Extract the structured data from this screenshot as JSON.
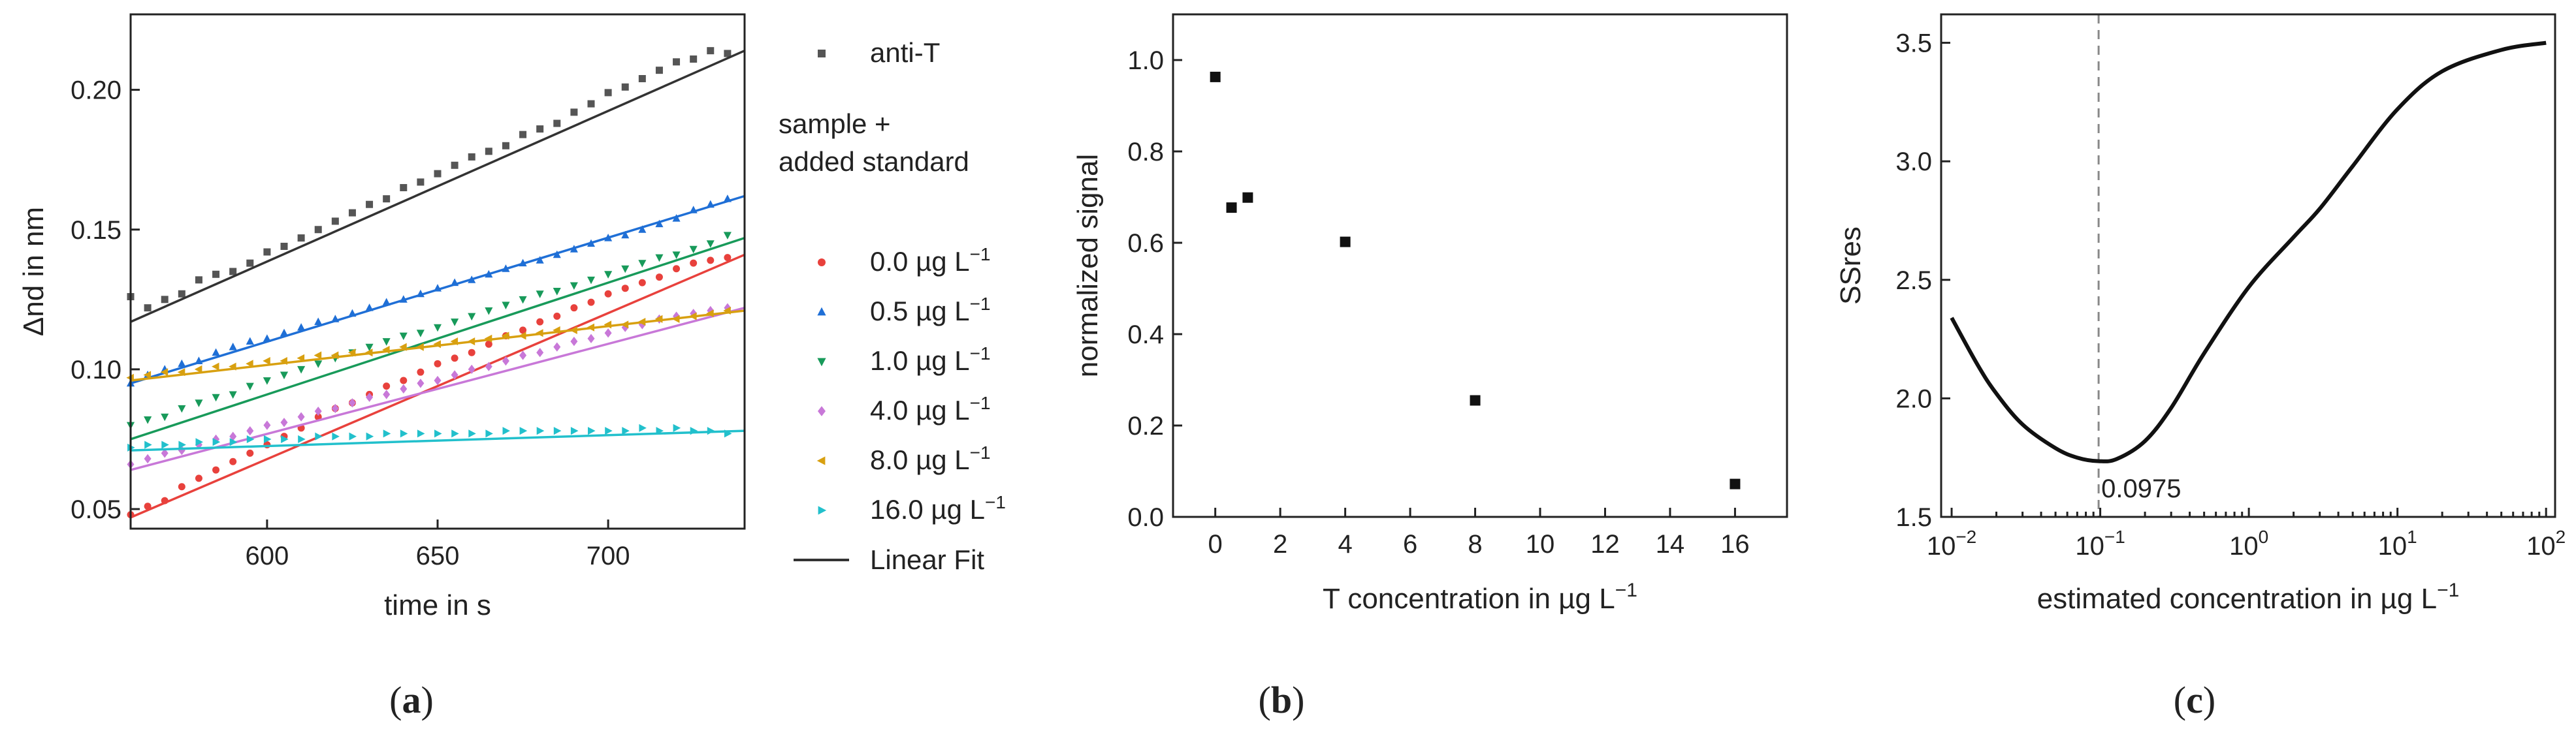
{
  "colors": {
    "anti_T": "#555555",
    "c0": "#e8413c",
    "c05": "#1f6fd6",
    "c1": "#189a5a",
    "c4": "#c878d8",
    "c8": "#d8a010",
    "c16": "#22c0cc",
    "fit": "#333333",
    "dash": "#888888"
  },
  "panel_labels": {
    "a_open": "(",
    "a": "a",
    "a_close": ")",
    "b_open": "(",
    "b": "b",
    "b_close": ")",
    "c_open": "(",
    "c": "c",
    "c_close": ")"
  },
  "chart_data": [
    {
      "id": "a",
      "type": "scatter",
      "xlabel": "time in s",
      "ylabel": "Δnd in nm",
      "xlim": [
        560,
        740
      ],
      "ylim": [
        0.043,
        0.227
      ],
      "xticks": [
        600,
        650,
        700
      ],
      "yticks": [
        0.05,
        0.1,
        0.15,
        0.2
      ],
      "ytick_labels": [
        "0.05",
        "0.10",
        "0.15",
        "0.20"
      ],
      "x_start": 560,
      "x_step": 5,
      "legend": {
        "header_line1": "sample +",
        "header_line2": "added standard",
        "unit_suffix": "−1",
        "fit_label": "Linear Fit"
      },
      "series": [
        {
          "name": "anti-T",
          "key": "anti_T",
          "marker": "square",
          "unit": "",
          "values": [
            0.126,
            0.122,
            0.125,
            0.127,
            0.132,
            0.134,
            0.135,
            0.138,
            0.142,
            0.144,
            0.147,
            0.15,
            0.153,
            0.156,
            0.159,
            0.161,
            0.165,
            0.167,
            0.17,
            0.173,
            0.176,
            0.178,
            0.18,
            0.184,
            0.186,
            0.188,
            0.192,
            0.195,
            0.199,
            0.201,
            0.204,
            0.207,
            0.21,
            0.211,
            0.214,
            0.213
          ],
          "fit": [
            0.117,
            0.214
          ]
        },
        {
          "name": "0.0",
          "key": "c0",
          "marker": "circle",
          "unit": "µg L",
          "values": [
            0.048,
            0.051,
            0.053,
            0.058,
            0.061,
            0.064,
            0.067,
            0.07,
            0.073,
            0.076,
            0.079,
            0.083,
            0.086,
            0.088,
            0.091,
            0.094,
            0.096,
            0.099,
            0.102,
            0.104,
            0.106,
            0.109,
            0.112,
            0.114,
            0.117,
            0.119,
            0.122,
            0.124,
            0.127,
            0.129,
            0.131,
            0.133,
            0.136,
            0.138,
            0.139,
            0.14
          ],
          "fit": [
            0.047,
            0.141
          ]
        },
        {
          "name": "0.5",
          "key": "c05",
          "marker": "triangle-up",
          "unit": "µg L",
          "values": [
            0.095,
            0.098,
            0.1,
            0.102,
            0.103,
            0.106,
            0.108,
            0.11,
            0.111,
            0.113,
            0.115,
            0.117,
            0.118,
            0.12,
            0.122,
            0.124,
            0.125,
            0.127,
            0.129,
            0.131,
            0.132,
            0.134,
            0.136,
            0.138,
            0.139,
            0.141,
            0.143,
            0.145,
            0.147,
            0.148,
            0.15,
            0.152,
            0.154,
            0.157,
            0.159,
            0.161
          ],
          "fit": [
            0.095,
            0.162
          ]
        },
        {
          "name": "1.0",
          "key": "c1",
          "marker": "triangle-down",
          "unit": "µg L",
          "values": [
            0.08,
            0.082,
            0.083,
            0.086,
            0.088,
            0.09,
            0.091,
            0.094,
            0.096,
            0.098,
            0.1,
            0.102,
            0.104,
            0.106,
            0.108,
            0.11,
            0.112,
            0.113,
            0.115,
            0.117,
            0.119,
            0.121,
            0.123,
            0.125,
            0.127,
            0.128,
            0.13,
            0.132,
            0.134,
            0.136,
            0.138,
            0.14,
            0.141,
            0.143,
            0.145,
            0.148
          ],
          "fit": [
            0.075,
            0.147
          ]
        },
        {
          "name": "4.0",
          "key": "c4",
          "marker": "diamond",
          "unit": "µg L",
          "values": [
            0.066,
            0.068,
            0.07,
            0.071,
            0.073,
            0.075,
            0.076,
            0.078,
            0.08,
            0.081,
            0.083,
            0.085,
            0.086,
            0.088,
            0.09,
            0.091,
            0.093,
            0.095,
            0.096,
            0.098,
            0.1,
            0.101,
            0.103,
            0.105,
            0.106,
            0.108,
            0.11,
            0.111,
            0.113,
            0.115,
            0.116,
            0.118,
            0.119,
            0.12,
            0.121,
            0.122
          ],
          "fit": [
            0.064,
            0.122
          ]
        },
        {
          "name": "8.0",
          "key": "c8",
          "marker": "triangle-left",
          "unit": "µg L",
          "values": [
            0.097,
            0.098,
            0.099,
            0.099,
            0.1,
            0.101,
            0.101,
            0.102,
            0.103,
            0.103,
            0.104,
            0.105,
            0.105,
            0.106,
            0.106,
            0.107,
            0.108,
            0.108,
            0.109,
            0.11,
            0.11,
            0.111,
            0.112,
            0.112,
            0.113,
            0.114,
            0.114,
            0.115,
            0.116,
            0.116,
            0.117,
            0.118,
            0.118,
            0.119,
            0.12,
            0.121
          ],
          "fit": [
            0.096,
            0.121
          ]
        },
        {
          "name": "16.0",
          "key": "c16",
          "marker": "triangle-right",
          "unit": "µg L",
          "values": [
            0.072,
            0.073,
            0.073,
            0.073,
            0.074,
            0.074,
            0.074,
            0.075,
            0.075,
            0.075,
            0.075,
            0.076,
            0.076,
            0.076,
            0.076,
            0.077,
            0.077,
            0.077,
            0.077,
            0.077,
            0.077,
            0.077,
            0.078,
            0.078,
            0.078,
            0.078,
            0.078,
            0.078,
            0.078,
            0.078,
            0.079,
            0.078,
            0.079,
            0.078,
            0.078,
            0.077
          ],
          "fit": [
            0.071,
            0.078
          ]
        }
      ]
    },
    {
      "id": "b",
      "type": "scatter",
      "xlabel": "T concentration in µg L",
      "xlabel_sup": "−1",
      "ylabel": "normalized signal",
      "xlim": [
        -1.3,
        17.6
      ],
      "ylim": [
        0,
        1.1
      ],
      "xticks": [
        0,
        2,
        4,
        6,
        8,
        10,
        12,
        14,
        16
      ],
      "yticks": [
        0.0,
        0.2,
        0.4,
        0.6,
        0.8,
        1.0
      ],
      "ytick_labels": [
        "0.0",
        "0.2",
        "0.4",
        "0.6",
        "0.8",
        "1.0"
      ],
      "points": [
        {
          "x": 0,
          "y": 0.963
        },
        {
          "x": 0.5,
          "y": 0.677
        },
        {
          "x": 1,
          "y": 0.699
        },
        {
          "x": 4,
          "y": 0.602
        },
        {
          "x": 8,
          "y": 0.255
        },
        {
          "x": 16,
          "y": 0.072
        }
      ]
    },
    {
      "id": "c",
      "type": "line",
      "xscale": "log",
      "xlabel": "estimated concentration in µg L",
      "xlabel_sup": "−1",
      "ylabel": "SSres",
      "xlim": [
        0.0085,
        115
      ],
      "ylim": [
        1.5,
        3.62
      ],
      "xticks": [
        0.01,
        0.1,
        1,
        10,
        100
      ],
      "xtick_labels": [
        {
          "base": "10",
          "exp": "−2"
        },
        {
          "base": "10",
          "exp": "−1"
        },
        {
          "base": "10",
          "exp": "0"
        },
        {
          "base": "10",
          "exp": "1"
        },
        {
          "base": "10",
          "exp": "2"
        }
      ],
      "yticks": [
        1.5,
        2.0,
        2.5,
        3.0,
        3.5
      ],
      "ytick_labels": [
        "1.5",
        "2.0",
        "2.5",
        "3.0",
        "3.5"
      ],
      "curve": [
        {
          "x": 0.01,
          "y": 2.34
        },
        {
          "x": 0.015,
          "y": 2.14
        },
        {
          "x": 0.02,
          "y": 2.02
        },
        {
          "x": 0.03,
          "y": 1.89
        },
        {
          "x": 0.05,
          "y": 1.79
        },
        {
          "x": 0.07,
          "y": 1.75
        },
        {
          "x": 0.0975,
          "y": 1.735
        },
        {
          "x": 0.13,
          "y": 1.745
        },
        {
          "x": 0.2,
          "y": 1.82
        },
        {
          "x": 0.3,
          "y": 1.96
        },
        {
          "x": 0.5,
          "y": 2.19
        },
        {
          "x": 1,
          "y": 2.47
        },
        {
          "x": 2,
          "y": 2.68
        },
        {
          "x": 3,
          "y": 2.8
        },
        {
          "x": 5,
          "y": 2.98
        },
        {
          "x": 10,
          "y": 3.22
        },
        {
          "x": 20,
          "y": 3.38
        },
        {
          "x": 50,
          "y": 3.47
        },
        {
          "x": 100,
          "y": 3.5
        }
      ],
      "min_x": 0.0975,
      "min_label": "0.0975"
    }
  ]
}
